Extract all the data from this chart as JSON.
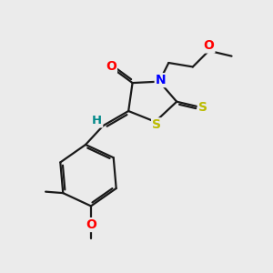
{
  "background_color": "#ebebeb",
  "atom_colors": {
    "O": "#ff0000",
    "N": "#0000ff",
    "S": "#bbbb00",
    "H": "#008888",
    "C": "#1a1a1a"
  },
  "bond_color": "#1a1a1a",
  "bond_width": 1.6,
  "figsize": [
    3.0,
    3.0
  ],
  "dpi": 100,
  "xlim": [
    0,
    10
  ],
  "ylim": [
    0,
    10
  ]
}
